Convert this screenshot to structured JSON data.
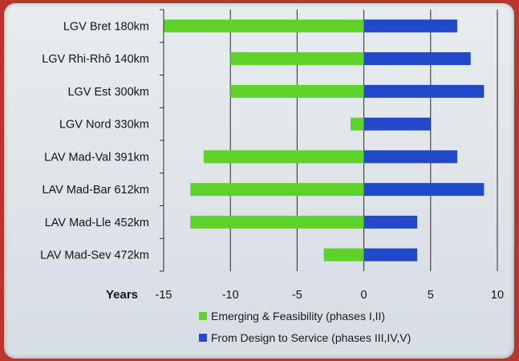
{
  "chart_data": {
    "type": "bar",
    "orientation": "horizontal",
    "stacked": "diverging",
    "categories": [
      "LGV Bret 180km",
      "LGV Rhi-Rhô 140km",
      "LGV Est 300km",
      "LGV Nord 330km",
      "LAV Mad-Val 391km",
      "LAV Mad-Bar 612km",
      "LAV Mad-Lle 452km",
      "LAV Mad-Sev 472km"
    ],
    "series": [
      {
        "name": "Emerging & Feasibility (phases I,II)",
        "color": "#5fd22a",
        "values": [
          -15,
          -10,
          -10,
          -1,
          -12,
          -13,
          -13,
          -3
        ]
      },
      {
        "name": "From Design to Service (phases III,IV,V)",
        "color": "#2048c8",
        "values": [
          7,
          8,
          9,
          5,
          7,
          9,
          4,
          4
        ]
      }
    ],
    "xlabel": "Years",
    "xlim": [
      -15,
      10
    ],
    "xticks": [
      "-15",
      "-10",
      "-5",
      "0",
      "5",
      "10"
    ],
    "grid": "vertical",
    "legend": "bottom"
  }
}
